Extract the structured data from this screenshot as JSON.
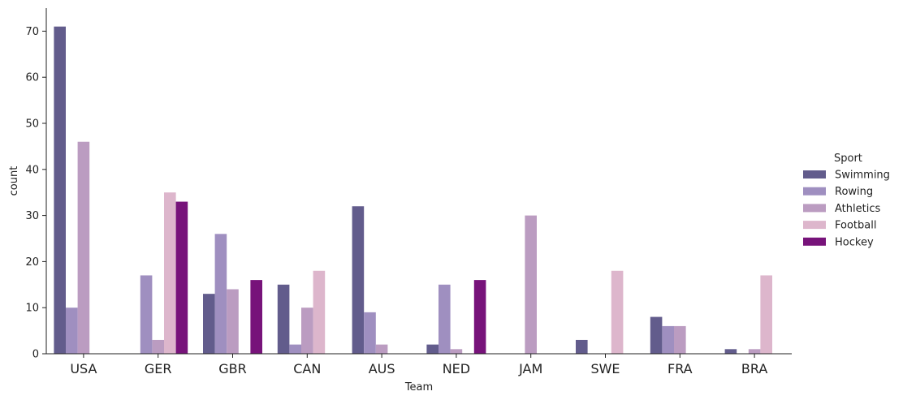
{
  "chart_data": {
    "type": "bar",
    "xlabel": "Team",
    "ylabel": "count",
    "categories": [
      "USA",
      "GER",
      "GBR",
      "CAN",
      "AUS",
      "NED",
      "JAM",
      "SWE",
      "FRA",
      "BRA"
    ],
    "ylim": [
      0,
      75
    ],
    "yticks": [
      0,
      10,
      20,
      30,
      40,
      50,
      60,
      70
    ],
    "legend": {
      "title": "Sport",
      "placement": "right"
    },
    "series": [
      {
        "name": "Swimming",
        "color": "#625c8c",
        "values": [
          71,
          0,
          13,
          15,
          32,
          2,
          0,
          3,
          8,
          1
        ]
      },
      {
        "name": "Rowing",
        "color": "#9f8fc0",
        "values": [
          10,
          17,
          26,
          2,
          9,
          15,
          0,
          0,
          6,
          0
        ]
      },
      {
        "name": "Athletics",
        "color": "#bb9cc1",
        "values": [
          46,
          3,
          14,
          10,
          2,
          1,
          30,
          0,
          6,
          1
        ]
      },
      {
        "name": "Football",
        "color": "#ddb6cc",
        "values": [
          0,
          35,
          0,
          18,
          0,
          0,
          0,
          18,
          0,
          17
        ]
      },
      {
        "name": "Hockey",
        "color": "#77137a",
        "values": [
          0,
          33,
          16,
          0,
          0,
          16,
          0,
          0,
          0,
          0
        ]
      }
    ]
  }
}
